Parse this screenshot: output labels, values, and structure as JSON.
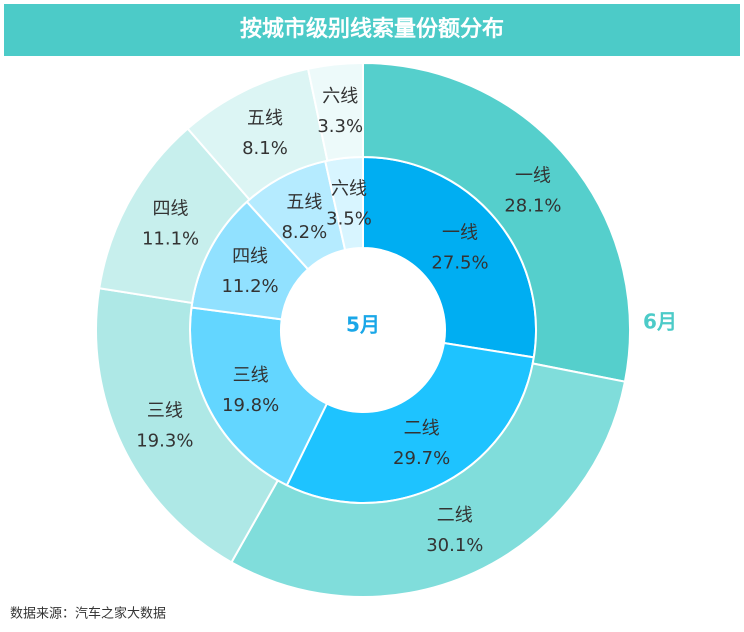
{
  "chart_data": {
    "type": "pie",
    "title": "按城市级别线索量份额分布",
    "source": "数据来源：汽车之家大数据",
    "categories": [
      "一线",
      "二线",
      "三线",
      "四线",
      "五线",
      "六线"
    ],
    "series": [
      {
        "name": "5月",
        "color": "#1aa7e8",
        "values": [
          27.5,
          29.7,
          19.8,
          11.2,
          8.2,
          3.5
        ],
        "value_labels": [
          "27.5%",
          "29.7%",
          "19.8%",
          "11.2%",
          "8.2%",
          "3.5%"
        ],
        "colors": [
          "#00aef2",
          "#1ec3ff",
          "#63d6ff",
          "#91e1ff",
          "#b5ebff",
          "#d8f5ff"
        ]
      },
      {
        "name": "6月",
        "color": "#4ccbc8",
        "values": [
          28.1,
          30.1,
          19.3,
          11.1,
          8.1,
          3.3
        ],
        "value_labels": [
          "28.1%",
          "30.1%",
          "19.3%",
          "11.1%",
          "8.1%",
          "3.3%"
        ],
        "colors": [
          "#55cfcc",
          "#80dddb",
          "#aee8e6",
          "#c7efed",
          "#dcf5f4",
          "#edfafa"
        ]
      }
    ]
  }
}
